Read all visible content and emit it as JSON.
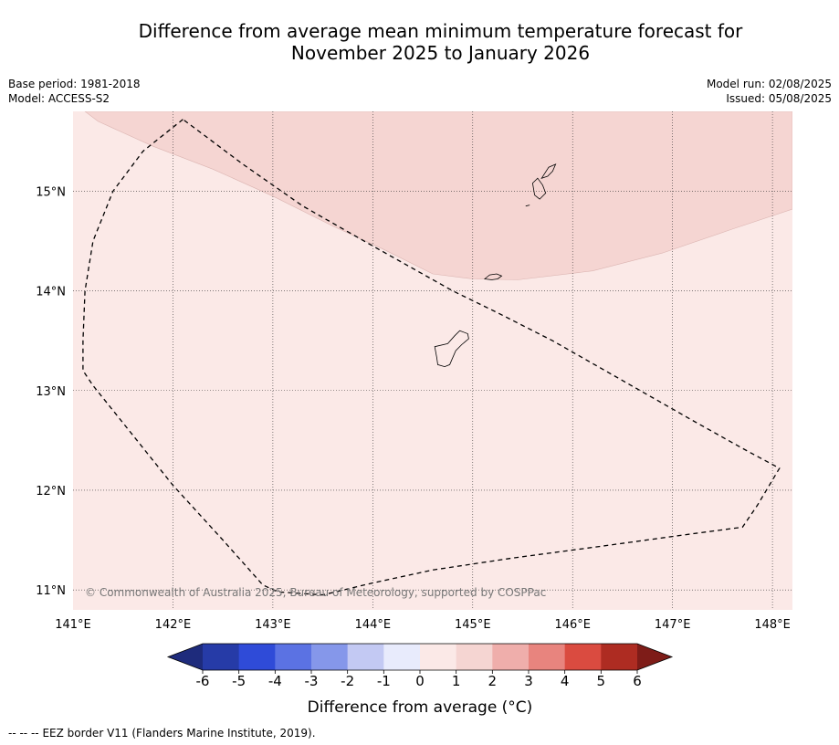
{
  "title_line1": "Difference from average mean minimum temperature forecast for",
  "title_line2": "November 2025 to January 2026",
  "meta": {
    "base_period": "Base period: 1981-2018",
    "model": "Model: ACCESS-S2",
    "model_run": "Model run: 02/08/2025",
    "issued": "Issued: 05/08/2025"
  },
  "copyright": "© Commonwealth of Australia 2025, Bureau of Meteorology, supported by COSPPac",
  "map": {
    "lon_range": [
      141.0,
      148.2
    ],
    "lat_range": [
      10.8,
      15.8
    ],
    "lat_ticks": [
      {
        "value": 15,
        "label": "15°N"
      },
      {
        "value": 14,
        "label": "14°N"
      },
      {
        "value": 13,
        "label": "13°N"
      },
      {
        "value": 12,
        "label": "12°N"
      },
      {
        "value": 11,
        "label": "11°N"
      }
    ],
    "lon_ticks": [
      {
        "value": 141,
        "label": "141°E"
      },
      {
        "value": 142,
        "label": "142°E"
      },
      {
        "value": 143,
        "label": "143°E"
      },
      {
        "value": 144,
        "label": "144°E"
      },
      {
        "value": 145,
        "label": "145°E"
      },
      {
        "value": 146,
        "label": "146°E"
      },
      {
        "value": 147,
        "label": "147°E"
      },
      {
        "value": 148,
        "label": "148°E"
      }
    ],
    "regions": [
      {
        "category": "0 to 1",
        "color": "#fbe9e7"
      },
      {
        "category": "1 to 2",
        "color": "#f5d5d2",
        "boundary": [
          [
            141.12,
            15.8
          ],
          [
            141.25,
            15.7
          ],
          [
            141.8,
            15.45
          ],
          [
            142.4,
            15.22
          ],
          [
            143.0,
            14.95
          ],
          [
            143.6,
            14.65
          ],
          [
            144.1,
            14.42
          ],
          [
            144.6,
            14.17
          ],
          [
            145.0,
            14.12
          ],
          [
            145.45,
            14.11
          ],
          [
            146.2,
            14.2
          ],
          [
            146.9,
            14.38
          ],
          [
            147.6,
            14.62
          ],
          [
            148.2,
            14.82
          ],
          [
            148.2,
            15.8
          ]
        ]
      }
    ],
    "eez_border": [
      [
        142.1,
        15.72
      ],
      [
        141.7,
        15.4
      ],
      [
        141.4,
        15.0
      ],
      [
        141.2,
        14.5
      ],
      [
        141.12,
        14.0
      ],
      [
        141.1,
        13.5
      ],
      [
        141.1,
        13.2
      ],
      [
        141.2,
        13.05
      ],
      [
        141.6,
        12.55
      ],
      [
        142.0,
        12.05
      ],
      [
        142.5,
        11.5
      ],
      [
        142.9,
        11.05
      ],
      [
        143.05,
        10.98
      ],
      [
        143.5,
        10.95
      ],
      [
        144.0,
        11.07
      ],
      [
        144.6,
        11.2
      ],
      [
        145.4,
        11.32
      ],
      [
        146.3,
        11.44
      ],
      [
        147.1,
        11.55
      ],
      [
        147.7,
        11.63
      ],
      [
        147.85,
        11.85
      ],
      [
        148.07,
        12.22
      ],
      [
        147.7,
        12.42
      ],
      [
        147.2,
        12.7
      ],
      [
        146.5,
        13.1
      ],
      [
        145.8,
        13.5
      ],
      [
        145.25,
        13.78
      ],
      [
        144.8,
        14.0
      ],
      [
        144.0,
        14.45
      ],
      [
        143.3,
        14.85
      ],
      [
        142.7,
        15.27
      ],
      [
        142.1,
        15.72
      ]
    ],
    "islands": [
      [
        [
          144.62,
          13.44
        ],
        [
          144.75,
          13.47
        ],
        [
          144.82,
          13.55
        ],
        [
          144.87,
          13.6
        ],
        [
          144.95,
          13.57
        ],
        [
          144.96,
          13.52
        ],
        [
          144.89,
          13.46
        ],
        [
          144.83,
          13.4
        ],
        [
          144.8,
          13.33
        ],
        [
          144.77,
          13.26
        ],
        [
          144.72,
          13.24
        ],
        [
          144.65,
          13.26
        ],
        [
          144.64,
          13.33
        ],
        [
          144.62,
          13.44
        ]
      ],
      [
        [
          145.12,
          14.12
        ],
        [
          145.17,
          14.16
        ],
        [
          145.24,
          14.17
        ],
        [
          145.29,
          14.15
        ],
        [
          145.25,
          14.12
        ],
        [
          145.19,
          14.11
        ],
        [
          145.12,
          14.12
        ]
      ],
      [
        [
          145.6,
          15.08
        ],
        [
          145.65,
          15.13
        ],
        [
          145.7,
          15.06
        ],
        [
          145.73,
          14.98
        ],
        [
          145.67,
          14.92
        ],
        [
          145.62,
          14.96
        ],
        [
          145.6,
          15.08
        ]
      ],
      [
        [
          145.69,
          15.13
        ],
        [
          145.76,
          15.24
        ],
        [
          145.83,
          15.27
        ],
        [
          145.8,
          15.2
        ],
        [
          145.75,
          15.15
        ],
        [
          145.69,
          15.13
        ]
      ],
      [
        [
          145.53,
          14.85
        ],
        [
          145.57,
          14.86
        ]
      ]
    ]
  },
  "colorbar": {
    "ticks": [
      "-6",
      "-5",
      "-4",
      "-3",
      "-2",
      "-1",
      "0",
      "1",
      "2",
      "3",
      "4",
      "5",
      "6"
    ],
    "colors": [
      "#263ba7",
      "#2f4bd8",
      "#5b72e3",
      "#8597ea",
      "#c3c9f3",
      "#e8ebfc",
      "#fbe9e7",
      "#f5d5d2",
      "#efaeab",
      "#e8847e",
      "#da4b40",
      "#ae2c22"
    ],
    "under_color": "#1e2b7c",
    "over_color": "#7e1c18",
    "label": "Difference from average (°C)"
  },
  "footer": {
    "legend_symbol": "-- -- --",
    "legend_text": "EEZ border V11 (Flanders Marine Institute, 2019)."
  }
}
